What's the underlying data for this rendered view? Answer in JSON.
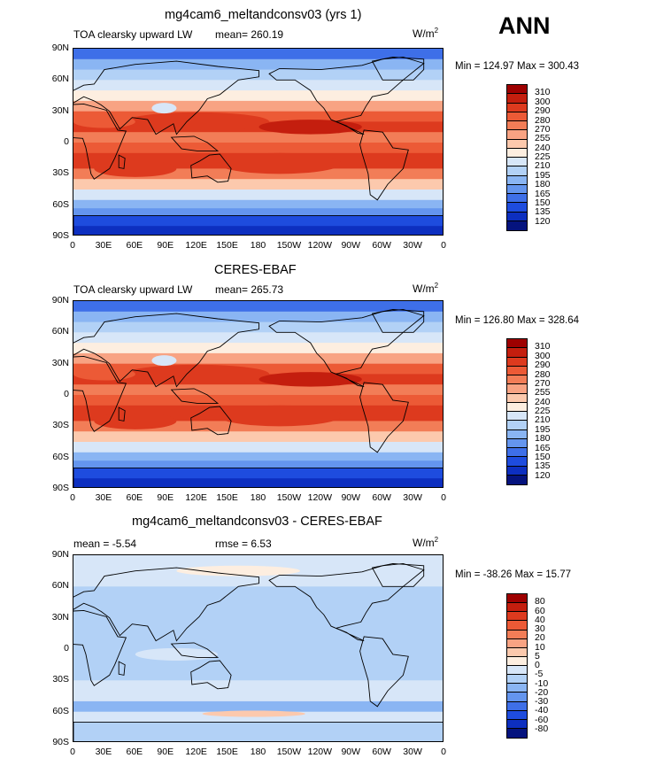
{
  "season": "ANN",
  "panels": [
    {
      "title": "mg4cam6_meltandconsv03 (yrs 1)",
      "left_label": "TOA clearsky upward LW",
      "mean_text": "mean= 260.19",
      "units": "W/m",
      "units_sup": "2",
      "minmax": "Min = 124.97 Max = 300.43",
      "field": "model"
    },
    {
      "title": "CERES-EBAF",
      "left_label": "TOA clearsky upward LW",
      "mean_text": "mean= 265.73",
      "units": "W/m",
      "units_sup": "2",
      "minmax": "Min = 126.80 Max = 328.64",
      "field": "obs"
    },
    {
      "title": "mg4cam6_meltandconsv03 - CERES-EBAF",
      "left_label": "mean =  -5.54",
      "mid_label": "rmse =  6.53",
      "units": "W/m",
      "units_sup": "2",
      "minmax": "Min = -38.26 Max =  15.77",
      "field": "diff"
    }
  ],
  "lat_ticks": [
    "90N",
    "60N",
    "30N",
    "0",
    "30S",
    "60S",
    "90S"
  ],
  "lon_ticks": [
    "0",
    "30E",
    "60E",
    "90E",
    "120E",
    "150E",
    "180",
    "150W",
    "120W",
    "90W",
    "60W",
    "30W",
    "0"
  ],
  "legend_abs": {
    "levels": [
      "310",
      "300",
      "290",
      "280",
      "270",
      "255",
      "240",
      "225",
      "210",
      "195",
      "180",
      "165",
      "150",
      "135",
      "120"
    ],
    "colors": [
      "#9e0000",
      "#c41e0e",
      "#dd3a1e",
      "#ec5a36",
      "#f27d57",
      "#f8a383",
      "#fcc9ad",
      "#fdeee0",
      "#d7e6f8",
      "#b2d1f6",
      "#8ab5f3",
      "#6495ee",
      "#3e6fe8",
      "#1e4cde",
      "#0d2fc0",
      "#05137e"
    ]
  },
  "legend_diff": {
    "levels": [
      "80",
      "60",
      "40",
      "30",
      "20",
      "10",
      "5",
      "0",
      "-5",
      "-10",
      "-20",
      "-30",
      "-40",
      "-60",
      "-80"
    ],
    "colors": [
      "#9e0000",
      "#c41e0e",
      "#dd3a1e",
      "#ec5a36",
      "#f27d57",
      "#f8a383",
      "#fcc9ad",
      "#fdeee0",
      "#d7e6f8",
      "#b2d1f6",
      "#8ab5f3",
      "#6495ee",
      "#3e6fe8",
      "#1e4cde",
      "#0d2fc0",
      "#05137e"
    ]
  }
}
